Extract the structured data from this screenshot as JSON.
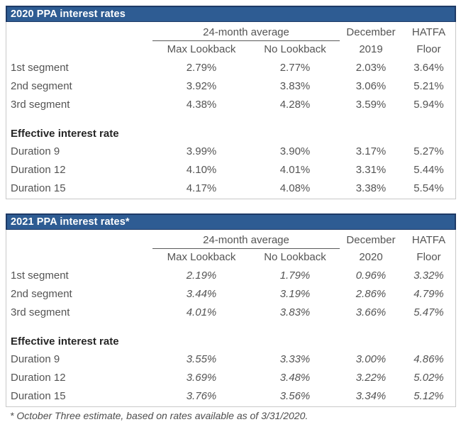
{
  "colors": {
    "title_bar_bg": "#2e5c93",
    "title_bar_border": "#1e3a66",
    "body_border": "#c9c9c9",
    "body_text": "#545454",
    "section_text": "#262626",
    "title_text": "#ffffff",
    "header_underline": "#595959"
  },
  "footnote": "* October Three estimate, based on rates available as of 3/31/2020.",
  "tables": [
    {
      "title": "2020 PPA interest rates",
      "span_header": "24-month average",
      "top_headers": [
        "December",
        "HATFA"
      ],
      "sub_headers": [
        "Max Lookback",
        "No Lookback",
        "2019",
        "Floor"
      ],
      "section_label": "Effective interest rate",
      "segment_rows": [
        {
          "label": "1st segment",
          "values": [
            "2.79%",
            "2.77%",
            "2.03%",
            "3.64%"
          ]
        },
        {
          "label": "2nd segment",
          "values": [
            "3.92%",
            "3.83%",
            "3.06%",
            "5.21%"
          ]
        },
        {
          "label": "3rd segment",
          "values": [
            "4.38%",
            "4.28%",
            "3.59%",
            "5.94%"
          ]
        }
      ],
      "duration_rows": [
        {
          "label": "Duration 9",
          "values": [
            "3.99%",
            "3.90%",
            "3.17%",
            "5.27%"
          ]
        },
        {
          "label": "Duration 12",
          "values": [
            "4.10%",
            "4.01%",
            "3.31%",
            "5.44%"
          ]
        },
        {
          "label": "Duration 15",
          "values": [
            "4.17%",
            "4.08%",
            "3.38%",
            "5.54%"
          ]
        }
      ]
    },
    {
      "title": "2021 PPA interest rates*",
      "span_header": "24-month average",
      "top_headers": [
        "December",
        "HATFA"
      ],
      "sub_headers": [
        "Max Lookback",
        "No Lookback",
        "2020",
        "Floor"
      ],
      "section_label": "Effective interest rate",
      "segment_rows": [
        {
          "label": "1st segment",
          "values": [
            "2.19%",
            "1.79%",
            "0.96%",
            "3.32%"
          ]
        },
        {
          "label": "2nd segment",
          "values": [
            "3.44%",
            "3.19%",
            "2.86%",
            "4.79%"
          ]
        },
        {
          "label": "3rd segment",
          "values": [
            "4.01%",
            "3.83%",
            "3.66%",
            "5.47%"
          ]
        }
      ],
      "duration_rows": [
        {
          "label": "Duration 9",
          "values": [
            "3.55%",
            "3.33%",
            "3.00%",
            "4.86%"
          ]
        },
        {
          "label": "Duration 12",
          "values": [
            "3.69%",
            "3.48%",
            "3.22%",
            "5.02%"
          ]
        },
        {
          "label": "Duration 15",
          "values": [
            "3.76%",
            "3.56%",
            "3.34%",
            "5.12%"
          ]
        }
      ]
    }
  ]
}
